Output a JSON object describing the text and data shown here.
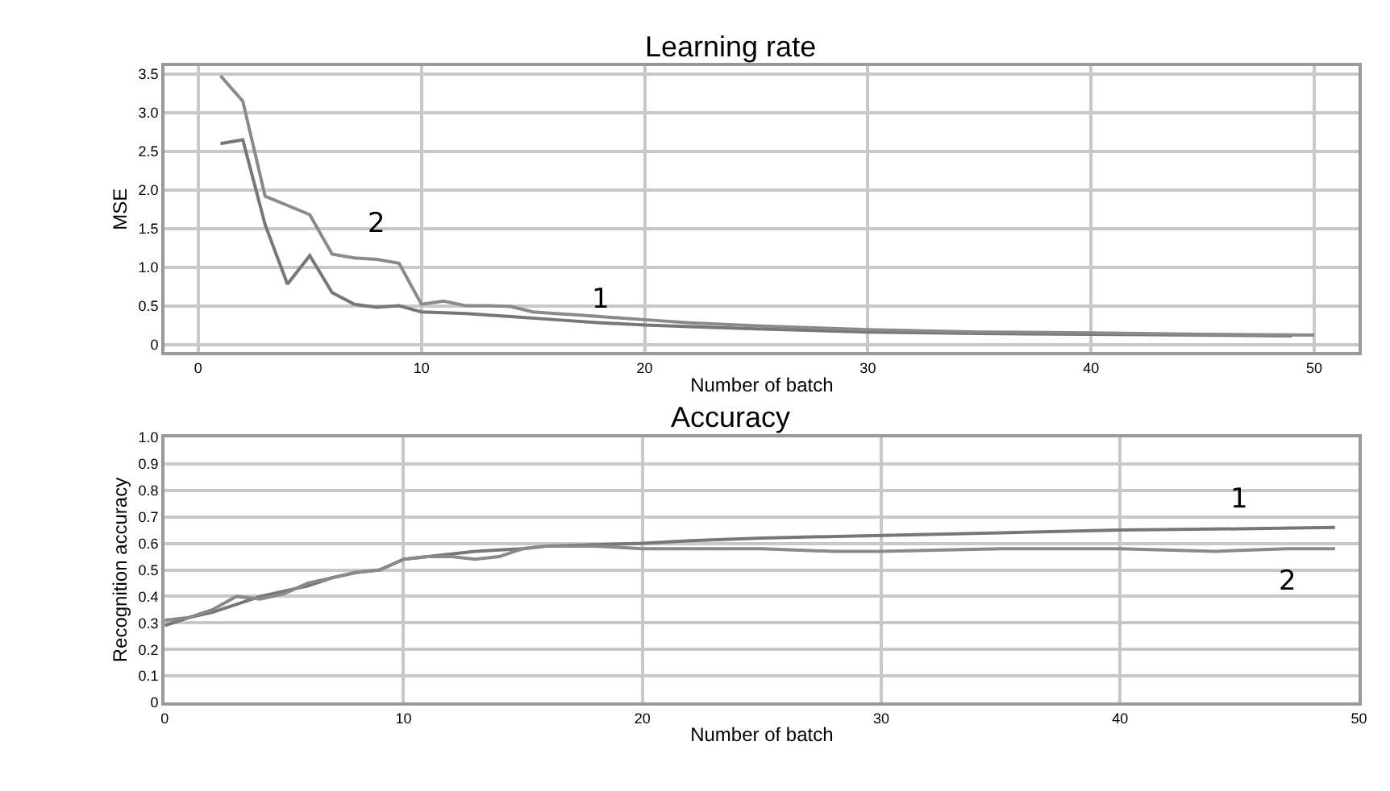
{
  "chart_data": [
    {
      "type": "line",
      "title": "Learning rate",
      "xlabel": "Number of batch",
      "ylabel": "MSE",
      "xlim": [
        -1.5,
        52
      ],
      "xticks": [
        0,
        10,
        20,
        30,
        40,
        50
      ],
      "ylim": [
        -0.1,
        3.6
      ],
      "yticks": [
        {
          "value": 0,
          "label": "0"
        },
        {
          "value": 0.5,
          "label": "0.5"
        },
        {
          "value": 1,
          "label": "1.0"
        },
        {
          "value": 1.5,
          "label": "1.5"
        },
        {
          "value": 2,
          "label": "2.0"
        },
        {
          "value": 2.5,
          "label": "2.5"
        },
        {
          "value": 3,
          "label": "3.0"
        },
        {
          "value": 3.5,
          "label": "3.5"
        }
      ],
      "grid": true,
      "legend": false,
      "series": [
        {
          "name": "1",
          "color": "#777777",
          "x": [
            1,
            2,
            3,
            4,
            5,
            6,
            7,
            8,
            9,
            10,
            12,
            14,
            16,
            18,
            20,
            22,
            25,
            30,
            35,
            40,
            45,
            49
          ],
          "values": [
            2.6,
            2.65,
            1.55,
            0.78,
            1.15,
            0.67,
            0.52,
            0.48,
            0.5,
            0.42,
            0.4,
            0.36,
            0.32,
            0.28,
            0.25,
            0.23,
            0.2,
            0.16,
            0.14,
            0.13,
            0.12,
            0.11
          ]
        },
        {
          "name": "2",
          "color": "#8a8a8a",
          "x": [
            1,
            2,
            3,
            4,
            5,
            6,
            7,
            8,
            9,
            10,
            11,
            12,
            13,
            14,
            15,
            16,
            17,
            18,
            19,
            20,
            22,
            25,
            30,
            35,
            40,
            45,
            50
          ],
          "values": [
            3.48,
            3.15,
            1.92,
            1.8,
            1.68,
            1.17,
            1.12,
            1.1,
            1.05,
            0.52,
            0.56,
            0.5,
            0.5,
            0.49,
            0.42,
            0.4,
            0.38,
            0.36,
            0.34,
            0.32,
            0.28,
            0.24,
            0.19,
            0.16,
            0.15,
            0.13,
            0.12
          ]
        }
      ]
    },
    {
      "type": "line",
      "title": "Accuracy",
      "xlabel": "Number of batch",
      "ylabel": "Recognition accuracy",
      "xlim": [
        0,
        50
      ],
      "xticks": [
        0,
        10,
        20,
        30,
        40,
        50
      ],
      "ylim": [
        0,
        1
      ],
      "yticks": [
        {
          "value": 0,
          "label": "0"
        },
        {
          "value": 0.1,
          "label": "0.1"
        },
        {
          "value": 0.2,
          "label": "0.2"
        },
        {
          "value": 0.3,
          "label": "0.3"
        },
        {
          "value": 0.4,
          "label": "0.4"
        },
        {
          "value": 0.5,
          "label": "0.5"
        },
        {
          "value": 0.6,
          "label": "0.6"
        },
        {
          "value": 0.7,
          "label": "0.7"
        },
        {
          "value": 0.8,
          "label": "0.8"
        },
        {
          "value": 0.9,
          "label": "0.9"
        },
        {
          "value": 1,
          "label": "1.0"
        }
      ],
      "grid": true,
      "legend": false,
      "series": [
        {
          "name": "1",
          "color": "#777777",
          "x": [
            0,
            1,
            2,
            3,
            4,
            5,
            6,
            7,
            8,
            9,
            10,
            11,
            12,
            13,
            14,
            15,
            16,
            18,
            20,
            22,
            25,
            30,
            35,
            40,
            45,
            49
          ],
          "values": [
            0.29,
            0.32,
            0.34,
            0.37,
            0.4,
            0.42,
            0.44,
            0.47,
            0.49,
            0.5,
            0.54,
            0.55,
            0.56,
            0.57,
            0.575,
            0.58,
            0.59,
            0.595,
            0.6,
            0.61,
            0.62,
            0.63,
            0.64,
            0.65,
            0.655,
            0.66
          ]
        },
        {
          "name": "2",
          "color": "#8a8a8a",
          "x": [
            0,
            1,
            2,
            3,
            4,
            5,
            6,
            7,
            8,
            9,
            10,
            11,
            12,
            13,
            14,
            15,
            16,
            18,
            20,
            22,
            25,
            28,
            30,
            35,
            40,
            44,
            47,
            49
          ],
          "values": [
            0.31,
            0.32,
            0.35,
            0.4,
            0.39,
            0.41,
            0.45,
            0.47,
            0.49,
            0.5,
            0.54,
            0.55,
            0.55,
            0.54,
            0.55,
            0.58,
            0.59,
            0.59,
            0.58,
            0.58,
            0.58,
            0.57,
            0.57,
            0.58,
            0.58,
            0.57,
            0.58,
            0.58
          ]
        }
      ]
    }
  ]
}
